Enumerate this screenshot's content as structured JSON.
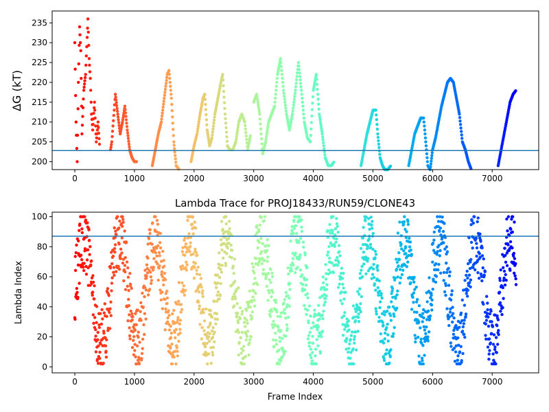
{
  "chart_data": [
    {
      "type": "scatter",
      "title": "",
      "xlabel": "",
      "ylabel": "ΔG (kT)",
      "xlim": [
        -380,
        7780
      ],
      "ylim": [
        198,
        238
      ],
      "xticks": [
        0,
        1000,
        2000,
        3000,
        4000,
        5000,
        6000,
        7000
      ],
      "xtick_labels": [
        "0",
        "1000",
        "2000",
        "3000",
        "4000",
        "5000",
        "6000",
        "7000"
      ],
      "yticks": [
        200,
        205,
        210,
        215,
        220,
        225,
        230,
        235
      ],
      "ytick_labels": [
        "200",
        "205",
        "210",
        "215",
        "220",
        "225",
        "230",
        "235"
      ],
      "hline": 202.8,
      "hline_color": "#1f77b4",
      "colormap": "rainbow (frame index: red at 0 → violet at 7400)",
      "series": [
        {
          "x": [
            0,
            20,
            40,
            60,
            80,
            100,
            120,
            150,
            180,
            200,
            220,
            240,
            260,
            280,
            300,
            330,
            360,
            390,
            420
          ],
          "y": [
            230,
            210,
            200,
            220,
            234,
            228,
            207,
            218,
            222,
            229,
            236,
            226,
            221,
            212,
            208,
            215,
            205,
            210,
            203
          ]
        },
        {
          "x": [
            600,
            620,
            640,
            660,
            680,
            720,
            760,
            800,
            840,
            880,
            920,
            960,
            1000,
            1040
          ],
          "y": [
            203,
            205,
            209,
            213,
            217,
            212,
            207,
            210,
            214,
            208,
            203,
            201,
            200,
            200
          ]
        },
        {
          "x": [
            1300,
            1350,
            1400,
            1450,
            1500,
            1550,
            1580,
            1620,
            1660,
            1700,
            1750
          ],
          "y": [
            199,
            203,
            207,
            210,
            216,
            222,
            223,
            216,
            205,
            199,
            198
          ]
        },
        {
          "x": [
            1950,
            2000,
            2050,
            2100,
            2150,
            2180,
            2220,
            2260,
            2300,
            2350,
            2400,
            2450,
            2480,
            2520,
            2560,
            2600,
            2650,
            2700,
            2750,
            2800,
            2850,
            2900,
            2950
          ],
          "y": [
            200,
            204,
            207,
            212,
            216,
            217,
            208,
            204,
            206,
            212,
            216,
            220,
            222,
            212,
            204,
            203,
            203,
            205,
            210,
            212,
            210,
            203,
            207
          ]
        },
        {
          "x": [
            3000,
            3050,
            3100,
            3150,
            3200,
            3250,
            3300,
            3350,
            3400,
            3450,
            3500,
            3550,
            3600,
            3650,
            3700,
            3750,
            3800,
            3850,
            3900,
            3950,
            4000,
            4050,
            4100,
            4150,
            4200,
            4250,
            4300,
            4350
          ],
          "y": [
            215,
            217,
            212,
            202,
            205,
            210,
            212,
            214,
            222,
            226,
            218,
            212,
            208,
            212,
            218,
            225,
            218,
            210,
            206,
            205,
            218,
            222,
            212,
            207,
            201,
            199,
            199,
            200
          ]
        },
        {
          "x": [
            4800,
            4850,
            4900,
            4950,
            5000,
            5050,
            5080,
            5120,
            5160,
            5200,
            5250,
            5300
          ],
          "y": [
            199,
            203,
            207,
            210,
            213,
            213,
            207,
            201,
            199,
            198,
            198,
            199
          ]
        },
        {
          "x": [
            5600,
            5650,
            5700,
            5750,
            5800,
            5850,
            5880,
            5920,
            5960,
            6000,
            6050,
            6100,
            6150,
            6200,
            6250,
            6300,
            6350,
            6400,
            6450,
            6500,
            6550,
            6600,
            6650
          ],
          "y": [
            199,
            203,
            207,
            209,
            211,
            211,
            206,
            199,
            198,
            203,
            206,
            210,
            214,
            217,
            220,
            221,
            220,
            216,
            212,
            205,
            203,
            200,
            198
          ]
        },
        {
          "x": [
            7100,
            7150,
            7200,
            7250,
            7300,
            7350,
            7400
          ],
          "y": [
            199,
            203,
            207,
            211,
            215,
            217,
            218
          ]
        }
      ]
    },
    {
      "type": "scatter",
      "title": "Lambda Trace for PROJ18433/RUN59/CLONE43",
      "xlabel": "Frame Index",
      "ylabel": "Lambda Index",
      "xlim": [
        -380,
        7780
      ],
      "ylim": [
        -4,
        103
      ],
      "xticks": [
        0,
        1000,
        2000,
        3000,
        4000,
        5000,
        6000,
        7000
      ],
      "xtick_labels": [
        "0",
        "1000",
        "2000",
        "3000",
        "4000",
        "5000",
        "6000",
        "7000"
      ],
      "yticks": [
        0,
        20,
        40,
        60,
        80,
        100
      ],
      "ytick_labels": [
        "0",
        "20",
        "40",
        "60",
        "80",
        "100"
      ],
      "hline": 87,
      "hline_color": "#1f77b4",
      "colormap": "rainbow (frame index: red at 0 → violet at 7400)",
      "x_range": [
        0,
        7400
      ],
      "y_range": [
        2,
        100
      ],
      "description_of_pattern": "dense vertical bands oscillating between lambda 2 and 100 across all frames"
    }
  ]
}
